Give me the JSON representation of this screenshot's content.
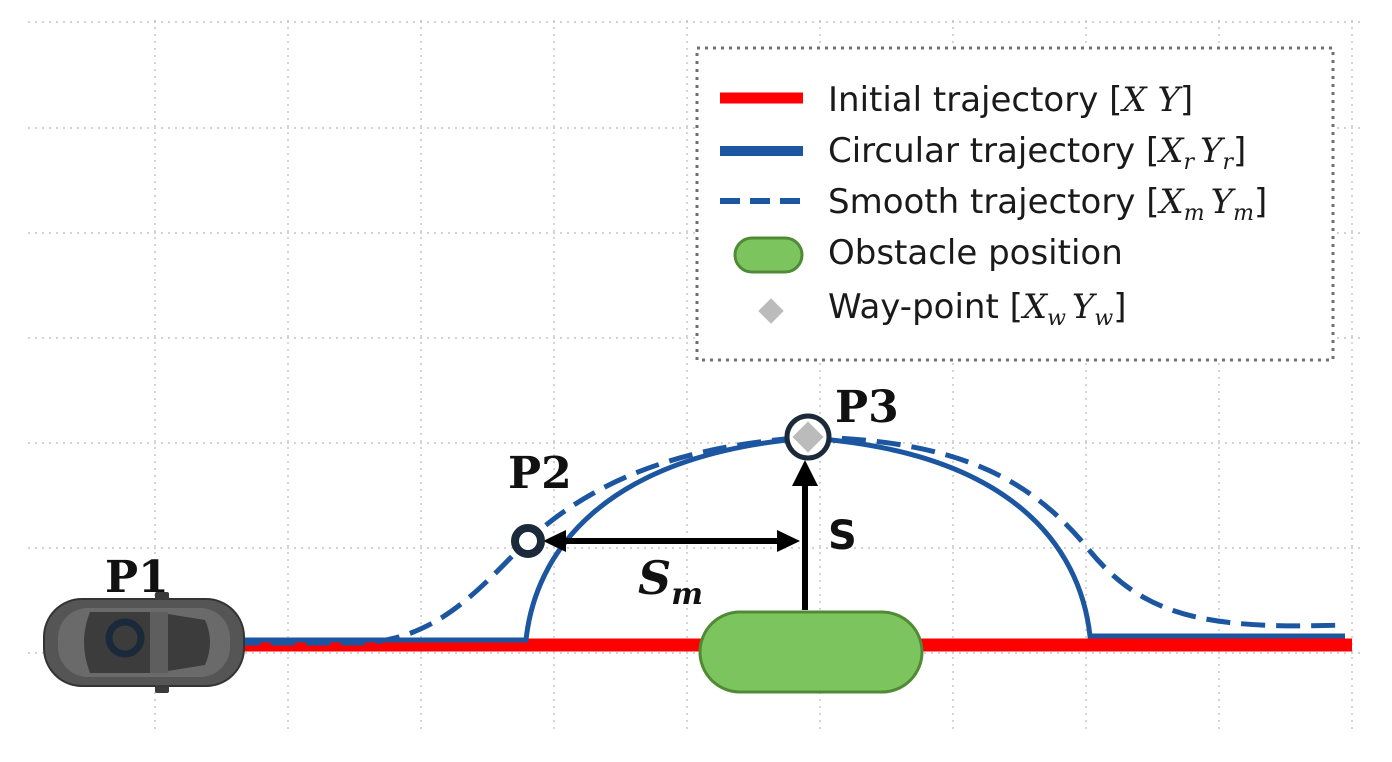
{
  "colors": {
    "initial": "#ff0000",
    "circular": "#1c56a0",
    "smooth": "#1c56a0",
    "obstacle_fill": "#7cc55e",
    "obstacle_stroke": "#4f8a35",
    "waypoint": "#bbbbbb",
    "grid": "#b9b9b9"
  },
  "legend": {
    "items": [
      {
        "key": "initial",
        "label": "Initial trajectory ",
        "math": "X",
        "sub": "",
        "math2": "Y",
        "sub2": ""
      },
      {
        "key": "circular",
        "label": "Circular trajectory ",
        "math": "X",
        "sub": "r",
        "math2": "Y",
        "sub2": "r"
      },
      {
        "key": "smooth",
        "label": "Smooth trajectory  ",
        "math": "X",
        "sub": "m",
        "math2": "Y",
        "sub2": "m"
      },
      {
        "key": "obstacle",
        "label": "Obstacle position"
      },
      {
        "key": "waypoint",
        "label": "Way-point ",
        "math": "X",
        "sub": "w",
        "math2": "Y",
        "sub2": "w"
      }
    ]
  },
  "labels": {
    "p1": "P1",
    "p2": "P2",
    "p3": "P3",
    "s": "S",
    "sm_main": "S",
    "sm_sub": "m"
  },
  "icons": {
    "vehicle": "car-top-view-icon",
    "waypoint": "diamond-icon"
  }
}
